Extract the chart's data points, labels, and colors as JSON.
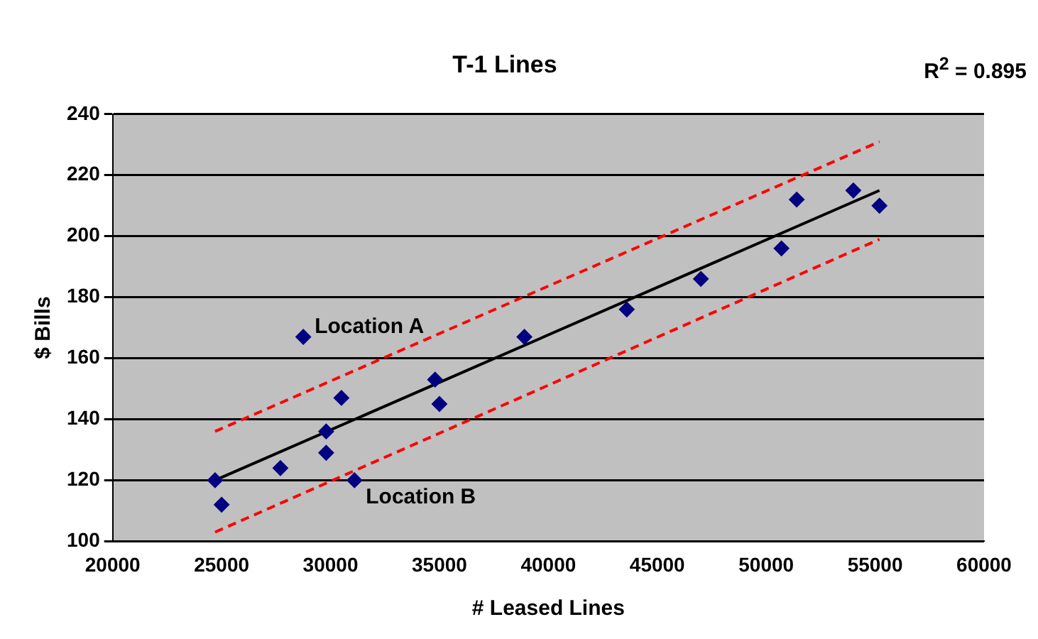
{
  "chart_data": {
    "type": "scatter",
    "title": "T-1 Lines",
    "xlabel": "# Leased Lines",
    "ylabel": "$ Bills",
    "xlim": [
      20000,
      60000
    ],
    "xticks": [
      20000,
      25000,
      30000,
      35000,
      40000,
      45000,
      50000,
      55000,
      60000
    ],
    "ylim": [
      100,
      240
    ],
    "yticks": [
      100,
      120,
      140,
      160,
      180,
      200,
      220,
      240
    ],
    "grid": "y",
    "legend": false,
    "series": [
      {
        "type": "scatter",
        "color": "#000080",
        "marker": "diamond",
        "x": [
          24700,
          25000,
          27700,
          28750,
          29800,
          29800,
          30500,
          31100,
          34800,
          35000,
          38900,
          43600,
          47000,
          50700,
          51400,
          54000,
          55200
        ],
        "values": [
          120,
          112,
          124,
          167,
          136,
          129,
          147,
          120,
          153,
          145,
          167,
          176,
          186,
          196,
          212,
          215,
          210
        ]
      },
      {
        "type": "line",
        "color": "#000000",
        "marker": "none",
        "line_style": "solid",
        "x": [
          24700,
          55200
        ],
        "values": [
          120,
          215
        ]
      },
      {
        "type": "line",
        "color": "#ff0000",
        "marker": "none",
        "line_style": "dashed",
        "x": [
          24700,
          55200
        ],
        "values": [
          136,
          231
        ]
      },
      {
        "type": "line",
        "color": "#ff0000",
        "marker": "none",
        "line_style": "dashed",
        "x": [
          24700,
          55200
        ],
        "values": [
          103,
          199
        ]
      }
    ],
    "annotations": [
      "R$^{2}$ = 0.895",
      {
        "text": "Location A",
        "x": 28750,
        "y": 167
      },
      {
        "text": "Location B",
        "x": 31100,
        "y": 120
      }
    ]
  }
}
